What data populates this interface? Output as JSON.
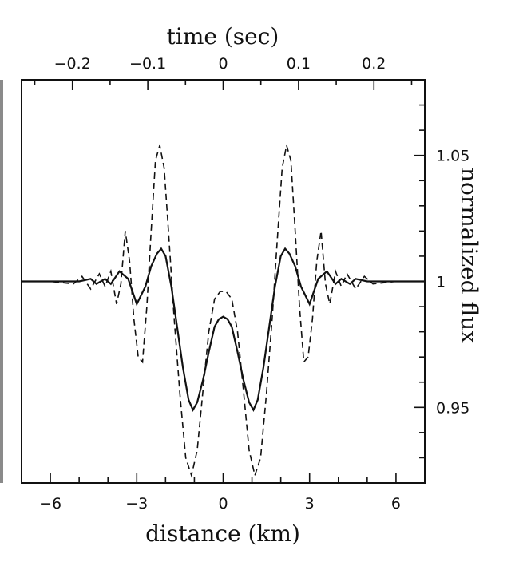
{
  "chart_data": {
    "type": "line",
    "xlabel": "distance (km)",
    "x2label": "time (sec)",
    "ylabel": "normalized flux",
    "xlim": [
      -7,
      7
    ],
    "x2lim": [
      -0.2675,
      0.2675
    ],
    "ylim": [
      0.92,
      1.08
    ],
    "xticks": [
      -6,
      -3,
      0,
      3,
      6
    ],
    "x2ticks": [
      -0.2,
      -0.1,
      0,
      0.1,
      0.2
    ],
    "yticks": [
      0.95,
      1,
      1.05
    ],
    "ytick_labels": [
      "0.95",
      "1",
      "1.05"
    ],
    "xtick_labels": [
      "−6",
      "−3",
      "0",
      "3",
      "6"
    ],
    "x2tick_labels": [
      "−0.2",
      "−0.1",
      "0",
      "0.1",
      "0.2"
    ],
    "series": [
      {
        "style": "solid",
        "x": [
          -7,
          -5,
          -4.6,
          -4.4,
          -4.1,
          -3.9,
          -3.6,
          -3.3,
          -3.0,
          -2.7,
          -2.5,
          -2.3,
          -2.15,
          -2.0,
          -1.8,
          -1.6,
          -1.4,
          -1.2,
          -1.05,
          -0.9,
          -0.7,
          -0.5,
          -0.3,
          -0.15,
          0,
          0.15,
          0.3,
          0.5,
          0.7,
          0.9,
          1.05,
          1.2,
          1.4,
          1.6,
          1.8,
          2.0,
          2.15,
          2.3,
          2.5,
          2.7,
          3.0,
          3.3,
          3.6,
          3.9,
          4.1,
          4.4,
          4.6,
          5,
          7
        ],
        "y": [
          1.0,
          1.0,
          1.001,
          0.999,
          1.001,
          0.999,
          1.004,
          1.001,
          0.991,
          0.998,
          1.006,
          1.011,
          1.013,
          1.01,
          0.998,
          0.982,
          0.966,
          0.953,
          0.949,
          0.952,
          0.961,
          0.972,
          0.982,
          0.985,
          0.986,
          0.985,
          0.982,
          0.972,
          0.961,
          0.952,
          0.949,
          0.953,
          0.966,
          0.982,
          0.998,
          1.01,
          1.013,
          1.011,
          1.006,
          0.998,
          0.991,
          1.001,
          1.004,
          0.999,
          1.001,
          0.999,
          1.001,
          1.0,
          1.0
        ]
      },
      {
        "style": "dashed",
        "x": [
          -7,
          -6,
          -5.2,
          -4.9,
          -4.6,
          -4.3,
          -4.1,
          -3.9,
          -3.7,
          -3.55,
          -3.4,
          -3.25,
          -3.1,
          -2.95,
          -2.8,
          -2.65,
          -2.5,
          -2.35,
          -2.2,
          -2.05,
          -1.9,
          -1.7,
          -1.5,
          -1.3,
          -1.1,
          -0.9,
          -0.7,
          -0.5,
          -0.3,
          -0.1,
          0,
          0.1,
          0.3,
          0.5,
          0.7,
          0.9,
          1.1,
          1.3,
          1.5,
          1.7,
          1.9,
          2.05,
          2.2,
          2.35,
          2.5,
          2.65,
          2.8,
          2.95,
          3.1,
          3.25,
          3.4,
          3.55,
          3.7,
          3.9,
          4.1,
          4.3,
          4.6,
          4.9,
          5.2,
          6,
          7
        ],
        "y": [
          1.0,
          1.0,
          0.999,
          1.002,
          0.997,
          1.003,
          0.998,
          1.004,
          0.991,
          0.999,
          1.02,
          1.008,
          0.985,
          0.97,
          0.968,
          0.99,
          1.02,
          1.048,
          1.054,
          1.045,
          1.02,
          0.985,
          0.955,
          0.93,
          0.923,
          0.933,
          0.957,
          0.98,
          0.993,
          0.996,
          0.996,
          0.996,
          0.993,
          0.98,
          0.957,
          0.933,
          0.923,
          0.93,
          0.955,
          0.985,
          1.02,
          1.045,
          1.054,
          1.048,
          1.02,
          0.99,
          0.968,
          0.97,
          0.985,
          1.008,
          1.02,
          0.999,
          0.991,
          1.004,
          0.998,
          1.003,
          0.997,
          1.002,
          0.999,
          1.0,
          1.0
        ]
      }
    ]
  }
}
